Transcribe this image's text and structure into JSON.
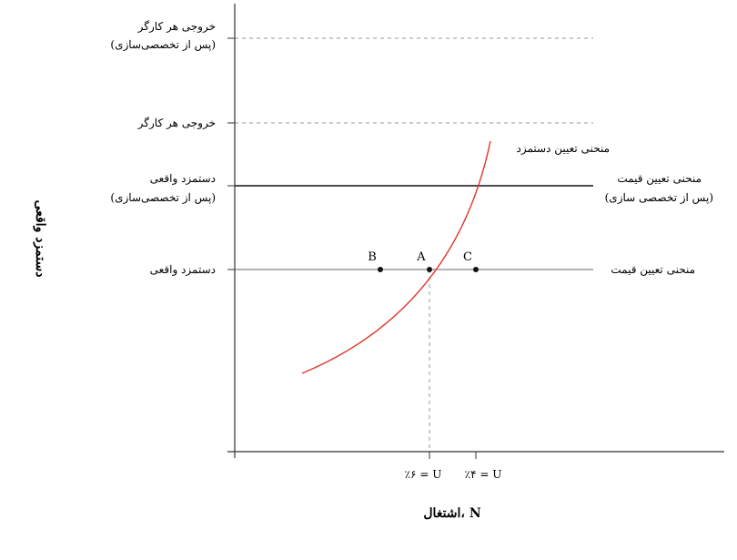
{
  "axes": {
    "y_title": "دستمزد واقعی",
    "x_title": "اشتغال، N"
  },
  "left_labels": {
    "output_after_line1": "خروجی هر کارگر",
    "output_after_line2": "(پس از تخصصی‌سازی)",
    "output": "خروجی هر کارگر",
    "wage_after_line1": "دستمزد واقعی",
    "wage_after_line2": "(پس از تخصصی‌سازی)",
    "wage": "دستمزد واقعی"
  },
  "curves": {
    "wage_setting": "منحنی تعیین دستمزد",
    "price_setting_after_line1": "منحنی تعیین قیمت",
    "price_setting_after_line2": "(پس از تخصصی سازی)",
    "price_setting": "منحنی تعیین قیمت"
  },
  "points": {
    "b": "B",
    "a": "A",
    "c": "C"
  },
  "x_ticks": {
    "u6": "٪۶ = U",
    "u4": "٪۴ = U"
  },
  "colors": {
    "wage_curve": "#e0352b",
    "axis": "#333333",
    "price_line_after": "#111111",
    "price_line": "#888888",
    "dashed": "#999999"
  }
}
